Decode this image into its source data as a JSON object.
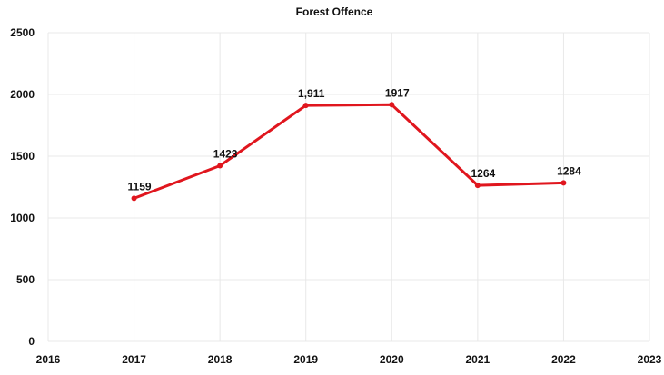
{
  "chart_data": {
    "type": "line",
    "title": "Forest Offence",
    "x": [
      2017,
      2018,
      2019,
      2020,
      2021,
      2022
    ],
    "values": [
      1159,
      1423,
      1911,
      1917,
      1264,
      1284
    ],
    "data_labels": [
      "1159",
      "1423",
      "1,911",
      "1917",
      "1264",
      "1284"
    ],
    "xlim": [
      2016,
      2023
    ],
    "ylim": [
      0,
      2500
    ],
    "x_ticks": [
      "2016",
      "2017",
      "2018",
      "2019",
      "2020",
      "2021",
      "2022",
      "2023"
    ],
    "y_ticks": [
      "0",
      "500",
      "1000",
      "1500",
      "2000",
      "2500"
    ],
    "xlabel": "",
    "ylabel": "",
    "grid": true,
    "line_color": "#e0161e",
    "grid_color": "#e8e8e8"
  }
}
